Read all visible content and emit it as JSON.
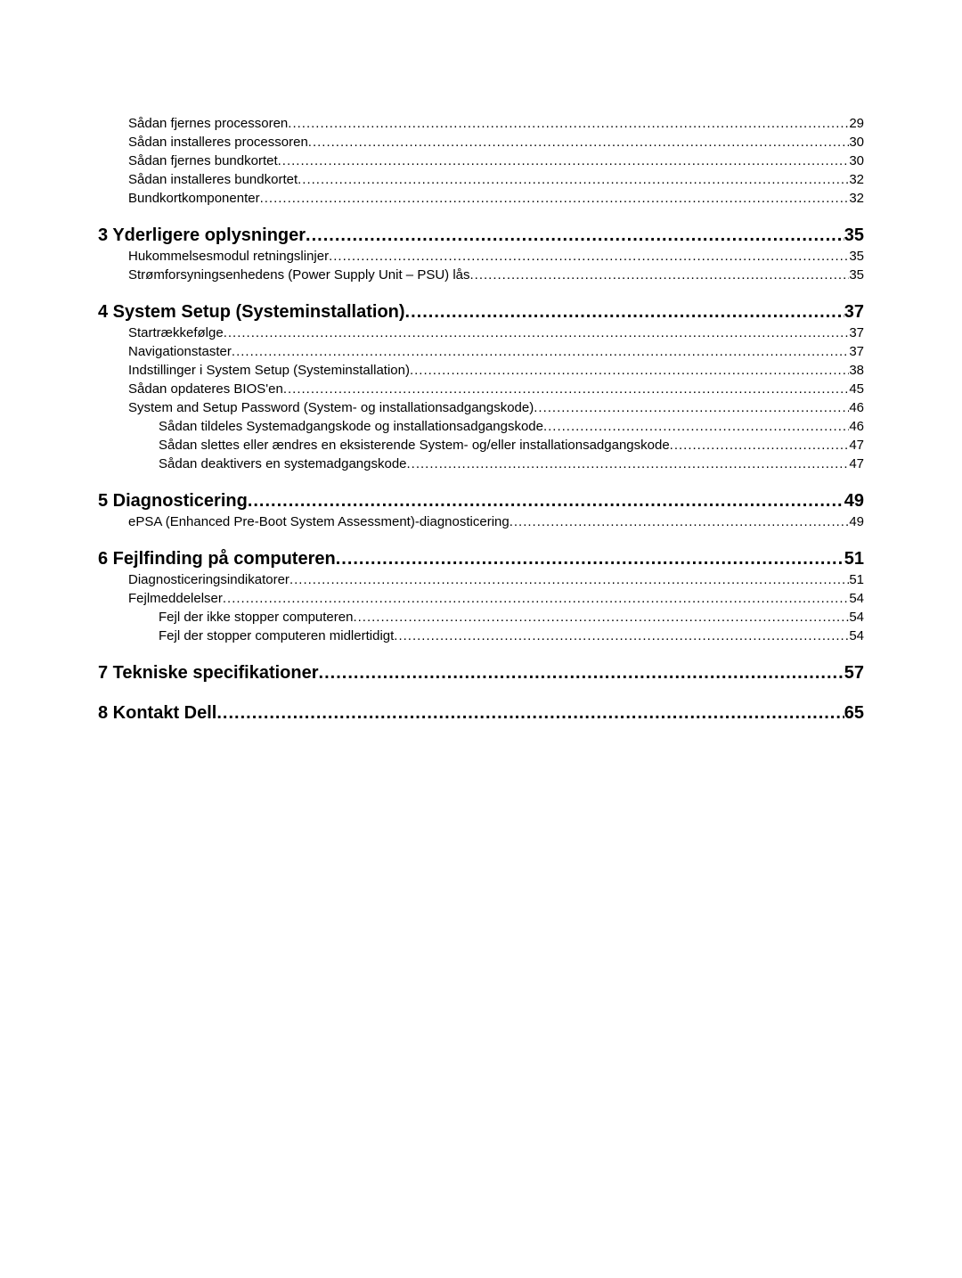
{
  "dot_fill": "....................................................................................................................................................................................................................................................................................................",
  "entries": [
    {
      "label": "Sådan fjernes processoren",
      "page": "29",
      "level": 1,
      "first": true
    },
    {
      "label": "Sådan installeres processoren",
      "page": "30",
      "level": 1
    },
    {
      "label": "Sådan fjernes bundkortet",
      "page": "30",
      "level": 1
    },
    {
      "label": "Sådan installeres bundkortet",
      "page": "32",
      "level": 1
    },
    {
      "label": "Bundkortkomponenter",
      "page": "32",
      "level": 1
    },
    {
      "label": "3 Yderligere oplysninger",
      "page": "35",
      "level": 0
    },
    {
      "label": "Hukommelsesmodul retningslinjer",
      "page": "35",
      "level": 1
    },
    {
      "label": "Strømforsyningsenhedens (Power Supply Unit – PSU) lås",
      "page": "35",
      "level": 1
    },
    {
      "label": "4 System Setup (Systeminstallation)",
      "page": "37",
      "level": 0
    },
    {
      "label": "Startrækkefølge",
      "page": "37",
      "level": 1
    },
    {
      "label": "Navigationstaster",
      "page": "37",
      "level": 1
    },
    {
      "label": "Indstillinger i System Setup (Systeminstallation)",
      "page": "38",
      "level": 1
    },
    {
      "label": "Sådan opdateres BIOS'en ",
      "page": "45",
      "level": 1
    },
    {
      "label": "System and Setup Password (System- og installationsadgangskode)",
      "page": "46",
      "level": 1
    },
    {
      "label": "Sådan tildeles Systemadgangskode og installationsadgangskode",
      "page": "46",
      "level": 2
    },
    {
      "label": "Sådan slettes eller ændres en eksisterende System- og/eller installationsadgangskode",
      "page": "47",
      "level": 2
    },
    {
      "label": "Sådan deaktivers en systemadgangskode",
      "page": "47",
      "level": 2
    },
    {
      "label": "5 Diagnosticering",
      "page": "49",
      "level": 0
    },
    {
      "label": "ePSA (Enhanced Pre-Boot System Assessment)-diagnosticering",
      "page": "49",
      "level": 1
    },
    {
      "label": "6 Fejlfinding på computeren",
      "page": "51",
      "level": 0
    },
    {
      "label": "Diagnosticeringsindikatorer",
      "page": "51",
      "level": 1
    },
    {
      "label": "Fejlmeddelelser",
      "page": "54",
      "level": 1
    },
    {
      "label": "Fejl der ikke stopper computeren",
      "page": "54",
      "level": 2
    },
    {
      "label": "Fejl der stopper computeren midlertidigt",
      "page": "54",
      "level": 2
    },
    {
      "label": "7 Tekniske specifikationer",
      "page": "57",
      "level": 0
    },
    {
      "label": "8 Kontakt Dell",
      "page": "65",
      "level": 0
    }
  ]
}
